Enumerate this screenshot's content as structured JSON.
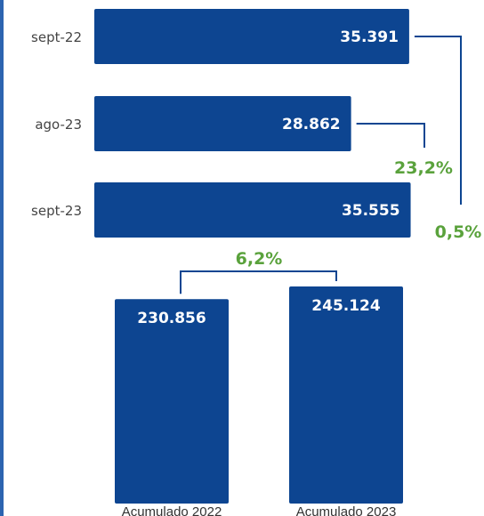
{
  "colors": {
    "bar": "#0d4591",
    "bracket": "#0d4591",
    "pct": "#5aa23c",
    "stripe": "#2c64b0"
  },
  "chart_data": [
    {
      "type": "bar",
      "orientation": "horizontal",
      "categories": [
        "sept-22",
        "ago-23",
        "sept-23"
      ],
      "values": [
        35391,
        28862,
        35555
      ],
      "value_labels": [
        "35.391",
        "28.862",
        "35.555"
      ],
      "xlim": [
        0,
        36000
      ],
      "grid": false,
      "annotations": [
        {
          "from": "ago-23",
          "to": "sept-23",
          "label": "23,2%"
        },
        {
          "from": "sept-22",
          "to": "sept-23",
          "label": "0,5%"
        }
      ]
    },
    {
      "type": "bar",
      "orientation": "vertical",
      "categories": [
        "Acumulado 2022",
        "Acumulado 2023"
      ],
      "values": [
        230856,
        245124
      ],
      "value_labels": [
        "230.856",
        "245.124"
      ],
      "ylim": [
        0,
        245124
      ],
      "grid": false,
      "annotations": [
        {
          "from": "Acumulado 2022",
          "to": "Acumulado 2023",
          "label": "6,2%"
        }
      ]
    }
  ]
}
